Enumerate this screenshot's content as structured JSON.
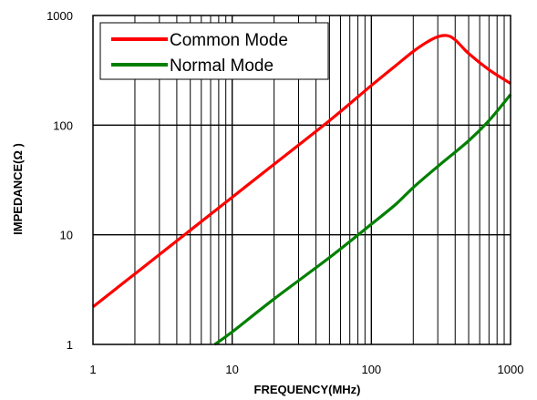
{
  "chart_data": {
    "type": "line",
    "xscale": "log",
    "yscale": "log",
    "xlim": [
      1,
      1000
    ],
    "ylim": [
      1,
      1000
    ],
    "xlabel": "FREQUENCY(MHz)",
    "ylabel": "IMPEDANCE(Ω )",
    "xticks": [
      1,
      10,
      100,
      1000
    ],
    "yticks": [
      1,
      10,
      100,
      1000
    ],
    "xtick_labels": [
      "1",
      "10",
      "100",
      "1000"
    ],
    "ytick_labels": [
      "1",
      "10",
      "100",
      "1000"
    ],
    "grid": true,
    "legend_position": "top-left",
    "series": [
      {
        "name": "Common Mode",
        "color": "#ff0000",
        "points": [
          [
            1,
            2.2
          ],
          [
            2,
            4.4
          ],
          [
            5,
            11
          ],
          [
            10,
            22
          ],
          [
            20,
            44
          ],
          [
            50,
            110
          ],
          [
            100,
            230
          ],
          [
            150,
            350
          ],
          [
            200,
            470
          ],
          [
            250,
            570
          ],
          [
            300,
            640
          ],
          [
            350,
            655
          ],
          [
            400,
            600
          ],
          [
            500,
            450
          ],
          [
            700,
            320
          ],
          [
            1000,
            240
          ]
        ]
      },
      {
        "name": "Normal Mode",
        "color": "#008000",
        "points": [
          [
            7.5,
            1
          ],
          [
            10,
            1.3
          ],
          [
            20,
            2.6
          ],
          [
            50,
            6.2
          ],
          [
            100,
            12.5
          ],
          [
            150,
            19
          ],
          [
            200,
            27
          ],
          [
            300,
            42
          ],
          [
            500,
            72
          ],
          [
            700,
            110
          ],
          [
            1000,
            190
          ]
        ]
      }
    ]
  }
}
